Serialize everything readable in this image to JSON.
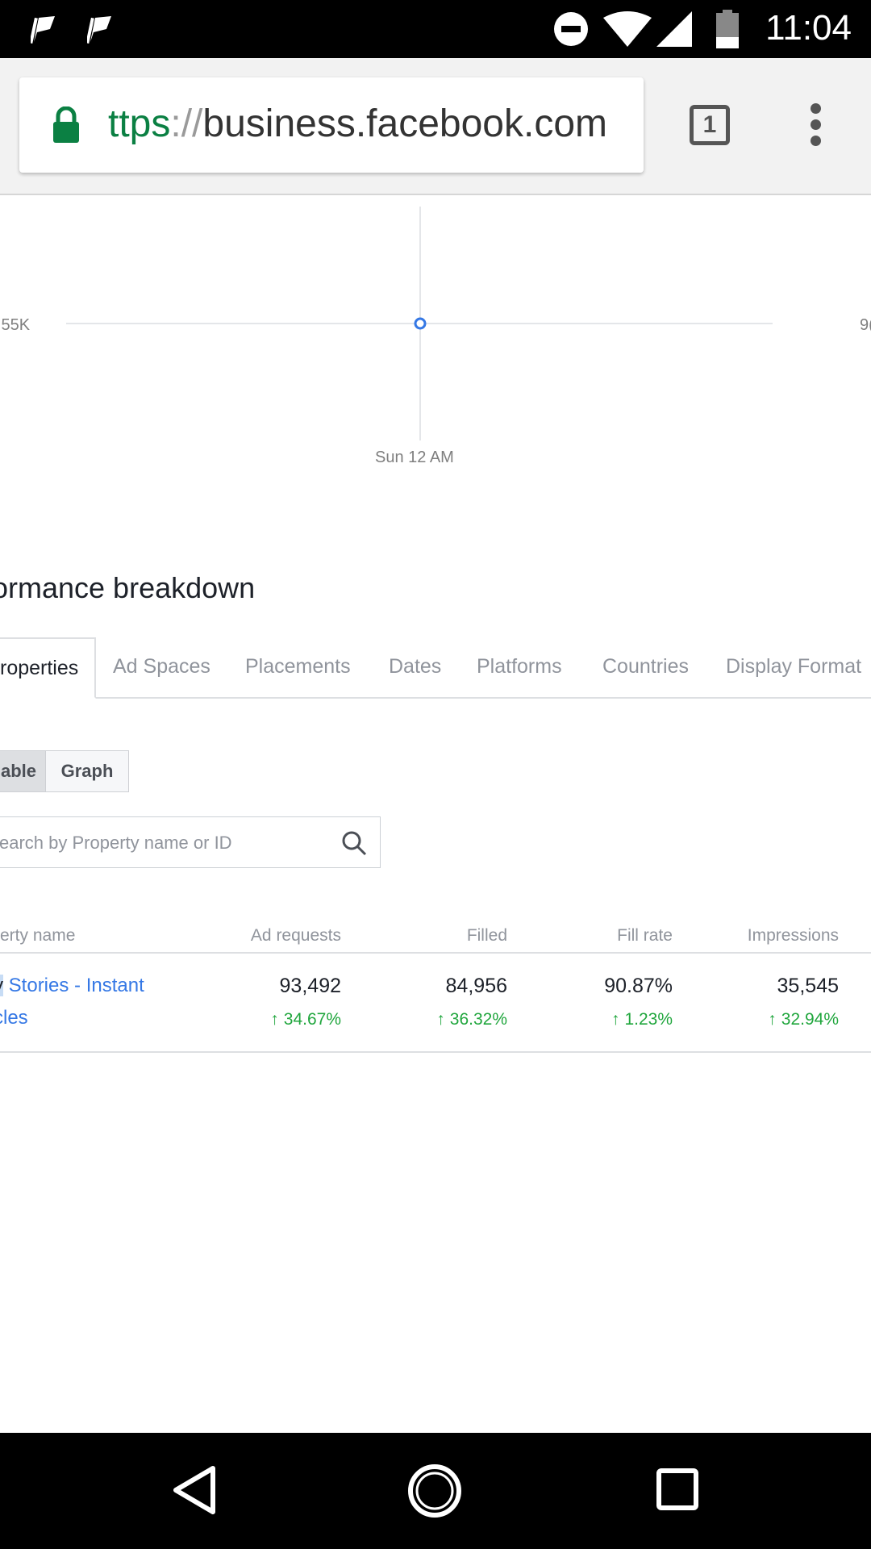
{
  "status_bar": {
    "time": "11:04"
  },
  "browser": {
    "url_scheme": "ttps",
    "url_sep": "://",
    "url_host": "business.facebook.com",
    "tab_count": "1"
  },
  "chart_data": {
    "type": "line",
    "x": [
      "Sun 12 AM"
    ],
    "series": [
      {
        "values": [
          5.55
        ]
      }
    ],
    "y_tick_left": ".55K",
    "y_tick_right": "9(",
    "x_tick": "Sun 12 AM",
    "grid": true
  },
  "section": {
    "title": "rformance breakdown"
  },
  "tabs": [
    {
      "label": "roperties",
      "active": true
    },
    {
      "label": "Ad Spaces"
    },
    {
      "label": "Placements"
    },
    {
      "label": "Dates"
    },
    {
      "label": "Platforms"
    },
    {
      "label": "Countries"
    },
    {
      "label": "Display Format"
    }
  ],
  "view_toggle": {
    "table_label": "able",
    "graph_label": "Graph"
  },
  "search": {
    "placeholder": "earch by Property name or ID"
  },
  "table": {
    "columns": [
      "erty name",
      "Ad requests",
      "Filled",
      "Fill rate",
      "Impressions"
    ],
    "rows": [
      {
        "name_highlight": "y",
        "name_rest": " Stories - Instant",
        "name_line2": "cles",
        "ad_requests": "93,492",
        "ad_requests_delta": "34.67%",
        "filled": "84,956",
        "filled_delta": "36.32%",
        "fill_rate": "90.87%",
        "fill_rate_delta": "1.23%",
        "impressions": "35,545",
        "impressions_delta": "32.94%"
      }
    ]
  },
  "colors": {
    "link": "#3578e5",
    "positive": "#20a63d",
    "secure": "#0b8043"
  }
}
